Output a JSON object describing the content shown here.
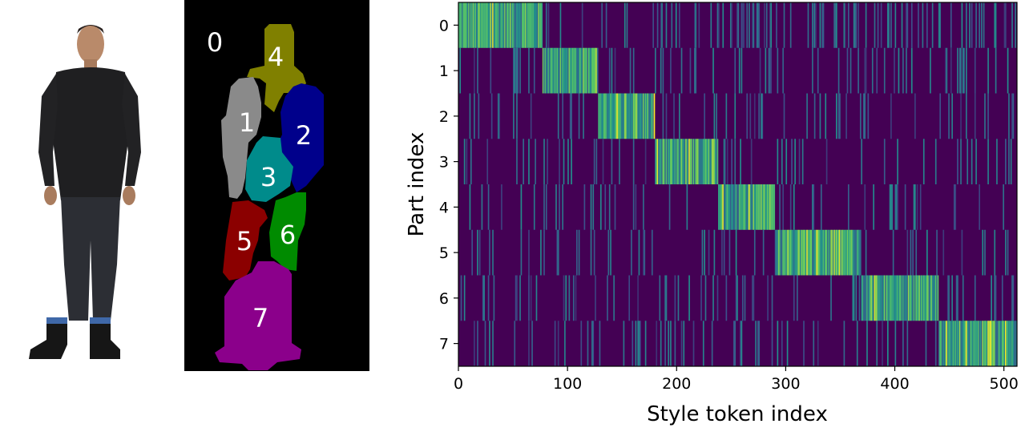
{
  "segmentation": {
    "labels": [
      "0",
      "1",
      "2",
      "3",
      "4",
      "5",
      "6",
      "7"
    ],
    "colors": {
      "0": "#000000",
      "1": "#8a8a8a",
      "2": "#00008b",
      "3": "#008b8b",
      "4": "#808000",
      "5": "#8b0000",
      "6": "#008b00",
      "7": "#8b008b"
    }
  },
  "chart_data": {
    "type": "heatmap",
    "xlabel": "Style token index",
    "ylabel": "Part index",
    "xlim": [
      0,
      512
    ],
    "x_ticks": [
      "0",
      "100",
      "200",
      "300",
      "400",
      "500"
    ],
    "y_ticks": [
      "0",
      "1",
      "2",
      "3",
      "4",
      "5",
      "6",
      "7"
    ],
    "rows": 8,
    "columns": 512,
    "colormap": "viridis",
    "background_color": "#440154",
    "dominant_token_ranges": [
      {
        "part": "0",
        "tokens": [
          0,
          77
        ]
      },
      {
        "part": "1",
        "tokens": [
          77,
          128
        ]
      },
      {
        "part": "2",
        "tokens": [
          128,
          180
        ]
      },
      {
        "part": "3",
        "tokens": [
          180,
          238
        ]
      },
      {
        "part": "4",
        "tokens": [
          238,
          290
        ]
      },
      {
        "part": "5",
        "tokens": [
          290,
          369
        ]
      },
      {
        "part": "6",
        "tokens": [
          369,
          440
        ]
      },
      {
        "part": "7",
        "tokens": [
          440,
          512
        ]
      }
    ]
  }
}
